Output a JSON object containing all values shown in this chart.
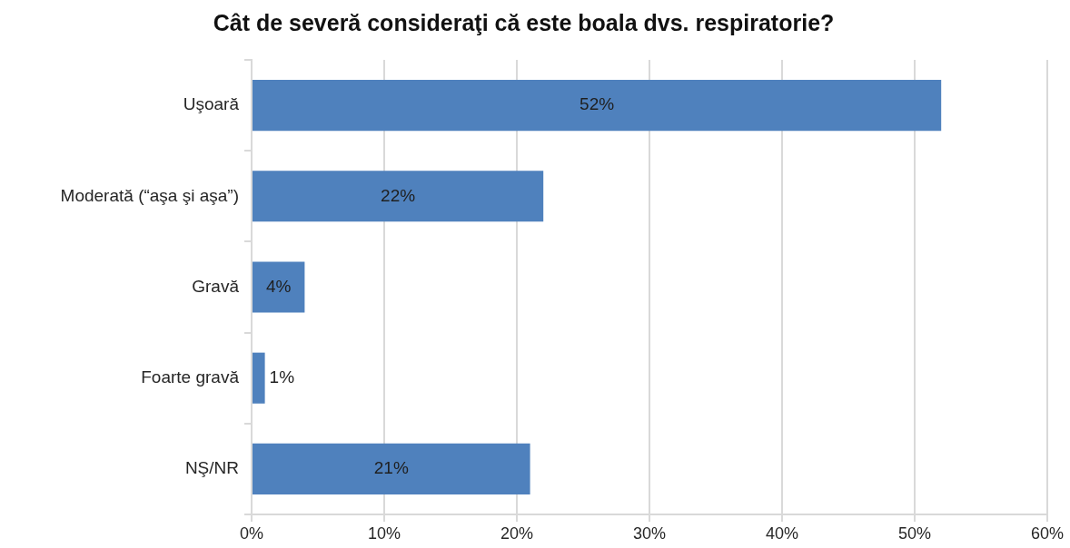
{
  "chart_data": {
    "type": "bar",
    "orientation": "horizontal",
    "title": "Cât de severă consideraţi că este boala dvs. respiratorie?",
    "categories": [
      "Uşoară",
      "Moderată (“aşa şi aşa”)",
      "Gravă",
      "Foarte gravă",
      "NŞ/NR"
    ],
    "values": [
      52,
      22,
      4,
      1,
      21
    ],
    "value_labels": [
      "52%",
      "22%",
      "4%",
      "1%",
      "21%"
    ],
    "color": "#4f81bd",
    "xlim": [
      0,
      60
    ],
    "xticks": [
      {
        "value": 0,
        "label": "0%"
      },
      {
        "value": 10,
        "label": "10%"
      },
      {
        "value": 20,
        "label": "20%"
      },
      {
        "value": 30,
        "label": "30%"
      },
      {
        "value": 40,
        "label": "40%"
      },
      {
        "value": 50,
        "label": "50%"
      },
      {
        "value": 60,
        "label": "60%"
      }
    ],
    "grid": "x"
  }
}
